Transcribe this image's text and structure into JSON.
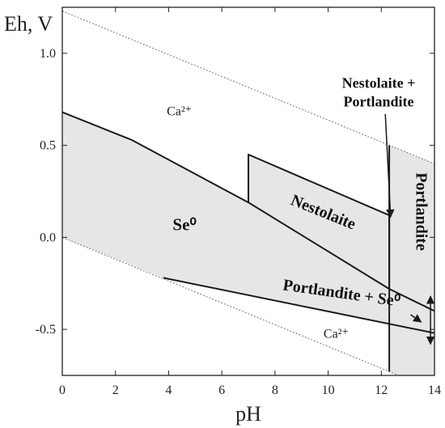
{
  "chart_data": {
    "type": "diagram",
    "xlabel": "pH",
    "ylabel": "Eh, V",
    "xlim": [
      0,
      14
    ],
    "ylim": [
      -0.75,
      1.25
    ],
    "x_ticks": [
      0,
      2,
      4,
      6,
      8,
      10,
      12,
      14
    ],
    "y_ticks": [
      1.0,
      0.5,
      0.0,
      -0.5
    ],
    "y_tick_labels": [
      "1.0",
      "0.5",
      "0.0",
      "-0.5"
    ],
    "colors": {
      "region_fill": "#e6e6e6",
      "boundary": "#1a1a1a",
      "water_line": "#777777"
    },
    "water_lines": [
      {
        "points": [
          [
            0,
            1.23
          ],
          [
            14,
            0.4
          ]
        ]
      },
      {
        "points": [
          [
            0,
            0.0
          ],
          [
            14,
            -0.83
          ]
        ]
      }
    ],
    "regions": [
      {
        "name": "Se0",
        "points": [
          [
            0,
            0.68
          ],
          [
            2.6,
            0.53
          ],
          [
            7,
            0.19
          ],
          [
            12.3,
            -0.28
          ],
          [
            12.3,
            -0.47
          ],
          [
            3.8,
            -0.22
          ],
          [
            0,
            0.0
          ]
        ]
      },
      {
        "name": "Nestolaite",
        "points": [
          [
            7,
            0.45
          ],
          [
            7,
            0.19
          ],
          [
            12.3,
            -0.28
          ],
          [
            12.3,
            0.12
          ]
        ]
      },
      {
        "name": "Portlandite",
        "points": [
          [
            12.3,
            0.5
          ],
          [
            14,
            0.4
          ],
          [
            14,
            -0.83
          ],
          [
            12.3,
            -0.73
          ]
        ]
      }
    ],
    "boundaries": [
      {
        "points": [
          [
            0,
            0.68
          ],
          [
            2.6,
            0.53
          ],
          [
            7,
            0.19
          ],
          [
            12.3,
            -0.28
          ],
          [
            14,
            -0.4
          ]
        ]
      },
      {
        "points": [
          [
            7,
            0.19
          ],
          [
            7,
            0.45
          ],
          [
            12.3,
            0.12
          ]
        ]
      },
      {
        "points": [
          [
            12.3,
            0.5
          ],
          [
            12.3,
            -0.73
          ]
        ]
      },
      {
        "points": [
          [
            3.8,
            -0.22
          ],
          [
            14,
            -0.52
          ]
        ]
      },
      {
        "points": [
          [
            12.3,
            0.12
          ],
          [
            12.3,
            -0.28
          ]
        ]
      }
    ],
    "labels": [
      {
        "id": "ca-upper",
        "text": "Ca²⁺",
        "x": 4.4,
        "y": 0.68,
        "style": "ion"
      },
      {
        "id": "ca-lower",
        "text": "Ca²⁺",
        "x": 10.3,
        "y": -0.53,
        "style": "ion"
      },
      {
        "id": "se0",
        "text": "Se⁰",
        "x": 4.6,
        "y": 0.06,
        "style": "region",
        "size": 21
      },
      {
        "id": "nestolaite",
        "text": "Nestolaite",
        "x": 9.8,
        "y": 0.13,
        "style": "region",
        "size": 20,
        "rotate": 22
      },
      {
        "id": "portlandite",
        "text": "Portlandite",
        "x": 13.45,
        "y": 0.14,
        "style": "region",
        "size": 20,
        "rotate": 90
      },
      {
        "id": "portlandite-se0",
        "text": "Portlandite + Se⁰",
        "x": 10.5,
        "y": -0.31,
        "style": "region",
        "size": 20,
        "rotate": 8
      },
      {
        "id": "nestolaite-portlandite-1",
        "text": "Nestolaite +",
        "x": 11.9,
        "y": 0.83,
        "style": "region",
        "size": 18
      },
      {
        "id": "nestolaite-portlandite-2",
        "text": "Portlandite",
        "x": 11.9,
        "y": 0.73,
        "style": "region",
        "size": 18
      }
    ],
    "arrows": [
      {
        "from": [
          12.15,
          0.67
        ],
        "to": [
          12.35,
          0.11
        ],
        "style": "head"
      },
      {
        "from": [
          13.1,
          -0.42
        ],
        "to": [
          13.5,
          -0.46
        ],
        "style": "head"
      },
      {
        "from": [
          13.85,
          -0.32
        ],
        "to": [
          13.85,
          -0.58
        ],
        "style": "double"
      }
    ]
  }
}
